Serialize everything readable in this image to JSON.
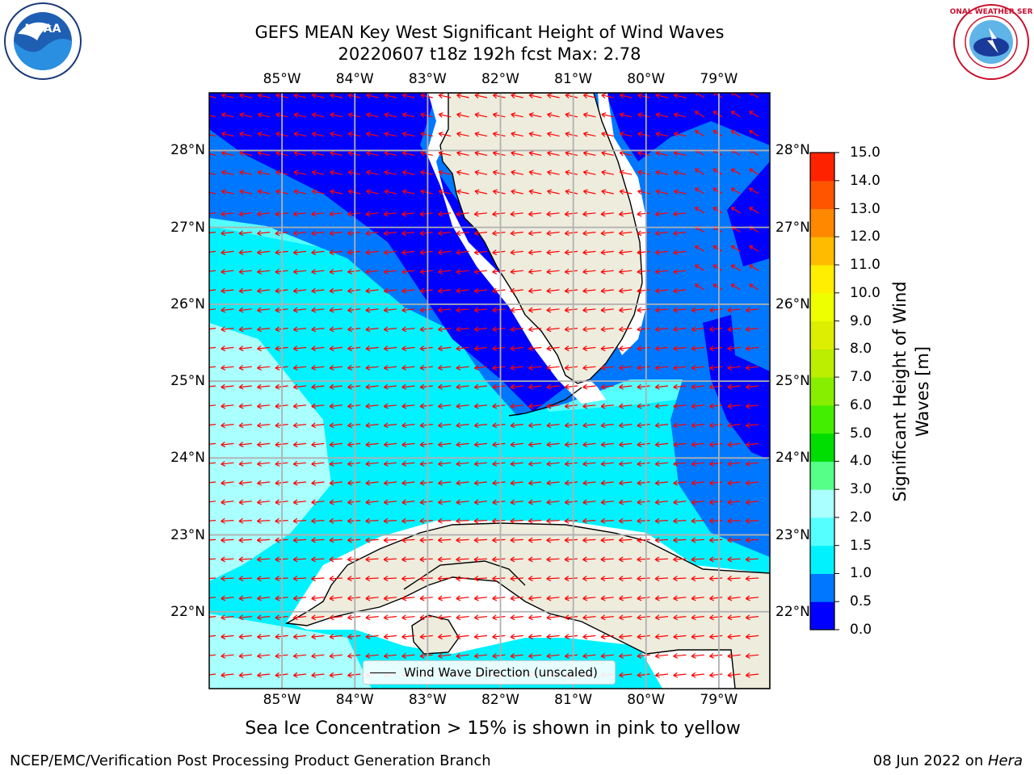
{
  "title": {
    "line1": "GEFS MEAN Key West Significant Height of Wind Waves",
    "line2": "20220607 t18z 192h fcst   Max: 2.78"
  },
  "map": {
    "longitude_ticks": [
      "85°W",
      "84°W",
      "83°W",
      "82°W",
      "81°W",
      "80°W",
      "79°W"
    ],
    "latitude_ticks": [
      "28°N",
      "27°N",
      "26°N",
      "25°N",
      "24°N",
      "23°N",
      "22°N"
    ],
    "extent": {
      "lon_min": -86.0,
      "lon_max": -78.3,
      "lat_min": 21.0,
      "lat_max": 28.75
    },
    "land_color": "#eeecdd",
    "arrow_color": "#ff0000",
    "gridline_color": "#b0b0b0",
    "legend_label": "Wind Wave Direction (unscaled)"
  },
  "colorbar": {
    "label": "Significant Height of Wind Waves [m]",
    "ticks": [
      "0.0",
      "0.5",
      "1.0",
      "1.5",
      "2.0",
      "3.0",
      "4.0",
      "5.0",
      "6.0",
      "7.0",
      "8.0",
      "9.0",
      "10.0",
      "11.0",
      "12.0",
      "13.0",
      "14.0",
      "15.0"
    ],
    "colors": [
      "#0000ff",
      "#0077ff",
      "#00f2ff",
      "#55ffff",
      "#aaffff",
      "#55ff88",
      "#00dd00",
      "#44ee00",
      "#88ee00",
      "#bbee00",
      "#ddee00",
      "#eeff00",
      "#ffee00",
      "#ffbb00",
      "#ff8800",
      "#ff5500",
      "#ff2200"
    ]
  },
  "note": "Sea Ice Concentration > 15% is shown in pink to yellow",
  "footer": {
    "left": "NCEP/EMC/Verification Post Processing Product Generation Branch",
    "right_date": "08 Jun 2022 on ",
    "right_host": "Hera"
  },
  "logos": {
    "left": "noaa-logo",
    "left_text": "NOAA",
    "right": "national-weather-service-logo",
    "right_text": "NATIONAL WEATHER SERVICE"
  }
}
